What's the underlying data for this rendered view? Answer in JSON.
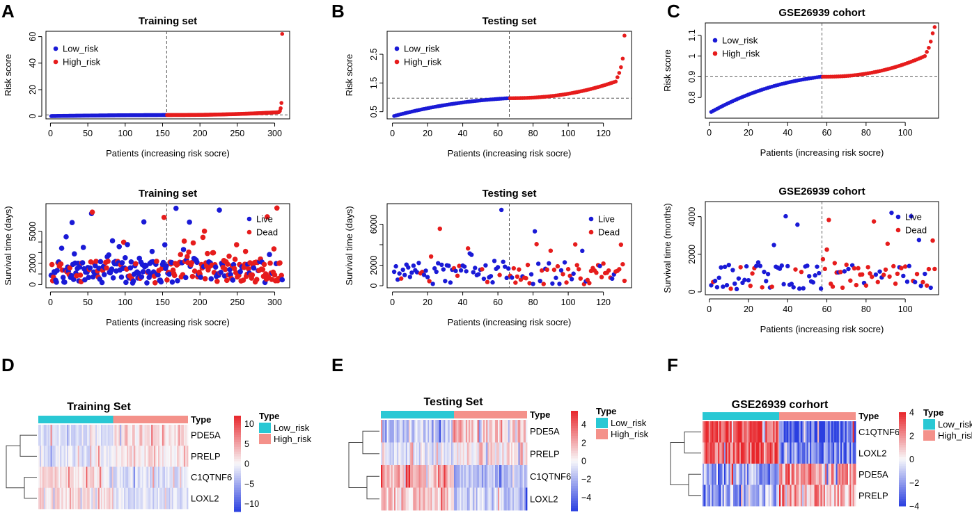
{
  "figure": {
    "panel_letters": [
      "A",
      "B",
      "C",
      "D",
      "E",
      "F"
    ]
  },
  "colors": {
    "low": "#1a1ad6",
    "high": "#e61c1c",
    "cyan": "#29c8d4",
    "salmon": "#f4918a",
    "hm_pos": "#e8262b",
    "hm_neg": "#2a3fe0"
  },
  "chart_data": [
    {
      "id": "A1",
      "type": "scatter",
      "title": "Training set",
      "xlabel": "Patients (increasing risk socre)",
      "ylabel": "Risk score",
      "xlim": [
        -6,
        320
      ],
      "ylim": [
        -2,
        64
      ],
      "xticks": [
        0,
        50,
        100,
        150,
        200,
        250,
        300
      ],
      "yticks": [
        0,
        20,
        40,
        60
      ],
      "n": 310,
      "cutoff_index": 155,
      "cutoff_value": 1.0,
      "series": [
        {
          "name": "Low_risk",
          "kind": "low",
          "shape": "risk-low",
          "start": 1,
          "end": 155,
          "from": 0.1,
          "to": 0.9
        },
        {
          "name": "High_risk",
          "kind": "high",
          "shape": "risk-high",
          "start": 156,
          "end": 310,
          "from": 0.9,
          "to": 3.0,
          "tail": [
            3.2,
            4.0,
            6.0,
            10.0,
            62.0
          ]
        }
      ],
      "legend": "top-left",
      "legend_labels": [
        "Low_risk",
        "High_risk"
      ]
    },
    {
      "id": "A2",
      "type": "scatter",
      "title": "Training set",
      "xlabel": "Patients (increasing risk socre)",
      "ylabel": "Survival time (days)",
      "xlim": [
        -6,
        320
      ],
      "ylim": [
        -300,
        7600
      ],
      "xticks": [
        0,
        50,
        100,
        150,
        200,
        250,
        300
      ],
      "yticks": [
        0,
        1000,
        2000,
        3000,
        4000,
        5000
      ],
      "ytick_labels_shown": [
        0,
        2000,
        5000
      ],
      "n": 310,
      "cutoff_index": 155,
      "max_value": 7300,
      "legend": "top-right",
      "legend_labels": [
        "Live",
        "Dead"
      ],
      "seed": 11
    },
    {
      "id": "B1",
      "type": "scatter",
      "title": "Testing set",
      "xlabel": "Patients (increasing risk socre)",
      "ylabel": "Risk score",
      "xlim": [
        -3,
        136
      ],
      "ylim": [
        0.25,
        3.3
      ],
      "xticks": [
        0,
        20,
        40,
        60,
        80,
        100,
        120
      ],
      "yticks": [
        0.5,
        1.5,
        2.5
      ],
      "n": 132,
      "cutoff_index": 66,
      "cutoff_value": 0.97,
      "series": [
        {
          "name": "Low_risk",
          "kind": "low",
          "shape": "risk-low",
          "start": 1,
          "end": 66,
          "from": 0.35,
          "to": 0.97
        },
        {
          "name": "High_risk",
          "kind": "high",
          "shape": "risk-high",
          "start": 67,
          "end": 132,
          "from": 0.97,
          "to": 1.55,
          "tail": [
            1.7,
            1.85,
            2.05,
            2.35,
            3.15
          ]
        }
      ],
      "legend": "top-left",
      "legend_labels": [
        "Low_risk",
        "High_risk"
      ]
    },
    {
      "id": "B2",
      "type": "scatter",
      "title": "Testing set",
      "xlabel": "Patients (increasing risk socre)",
      "ylabel": "Survival time (days)",
      "xlim": [
        -3,
        136
      ],
      "ylim": [
        -200,
        8000
      ],
      "xticks": [
        0,
        20,
        40,
        60,
        80,
        100,
        120
      ],
      "yticks": [
        0,
        2000,
        4000,
        6000
      ],
      "ytick_labels_shown": [
        0,
        2000,
        6000
      ],
      "n": 132,
      "cutoff_index": 66,
      "max_value": 7600,
      "legend": "top-right",
      "legend_labels": [
        "Live",
        "Dead"
      ],
      "seed": 23
    },
    {
      "id": "C1",
      "type": "scatter",
      "title": "GSE26939 cohort",
      "xlabel": "Patients (increasing risk socre)",
      "ylabel": "Risk score",
      "xlim": [
        -2,
        117
      ],
      "ylim": [
        0.7,
        1.16
      ],
      "xticks": [
        0,
        20,
        40,
        60,
        80,
        100
      ],
      "yticks": [
        0.8,
        0.9,
        1.0,
        1.1
      ],
      "n": 115,
      "cutoff_index": 57,
      "cutoff_value": 0.9,
      "series": [
        {
          "name": "Low_risk",
          "kind": "low",
          "shape": "risk-low",
          "start": 1,
          "end": 57,
          "from": 0.73,
          "to": 0.9
        },
        {
          "name": "High_risk",
          "kind": "high",
          "shape": "risk-high",
          "start": 58,
          "end": 115,
          "from": 0.9,
          "to": 1.0,
          "tail": [
            1.02,
            1.04,
            1.07,
            1.11,
            1.14
          ]
        }
      ],
      "legend": "top-left",
      "legend_labels": [
        "Low_risk",
        "High_risk"
      ]
    },
    {
      "id": "C2",
      "type": "scatter",
      "title": "GSE26939 cohort",
      "xlabel": "Patients (increasing risk socre)",
      "ylabel": "Survival time (months)",
      "xlim": [
        -2,
        117
      ],
      "ylim": [
        -150,
        4800
      ],
      "xticks": [
        0,
        20,
        40,
        60,
        80,
        100
      ],
      "yticks": [
        0,
        2000,
        4000
      ],
      "n": 115,
      "cutoff_index": 57,
      "max_value": 4700,
      "legend": "top-right",
      "legend_labels": [
        "Live",
        "Dead"
      ],
      "seed": 37
    },
    {
      "id": "D",
      "type": "heatmap",
      "title": "Training Set",
      "genes": [
        "PDE5A",
        "PRELP",
        "C1QTNF6",
        "LOXL2"
      ],
      "type_label": "Type",
      "groups": [
        "Low_risk",
        "High_risk"
      ],
      "colorbar_range": [
        -12,
        12
      ],
      "colorbar_ticks": [
        10,
        5,
        0,
        -5,
        -10
      ],
      "dendrogram": "pairs-12-34",
      "n_cols": 110,
      "scale": 0.35,
      "gene_trend": [
        0.15,
        0.15,
        -0.2,
        -0.2
      ],
      "seed": 5
    },
    {
      "id": "E",
      "type": "heatmap",
      "title": "Testing Set",
      "genes": [
        "PDE5A",
        "PRELP",
        "C1QTNF6",
        "LOXL2"
      ],
      "type_label": "Type",
      "groups": [
        "Low_risk",
        "High_risk"
      ],
      "colorbar_range": [
        -5.5,
        5.5
      ],
      "colorbar_ticks": [
        4,
        2,
        0,
        -2,
        -4
      ],
      "dendrogram": "pairs-12-34",
      "n_cols": 100,
      "scale": 0.55,
      "gene_trend": [
        0.2,
        0.1,
        -0.3,
        -0.2
      ],
      "seed": 9
    },
    {
      "id": "F",
      "type": "heatmap",
      "title": "GSE26939 corhort",
      "genes": [
        "C1QTNF6",
        "LOXL2",
        "PDE5A",
        "PRELP"
      ],
      "type_label": "Type",
      "groups": [
        "Low_risk",
        "High_risk"
      ],
      "colorbar_range": [
        -4,
        4
      ],
      "colorbar_ticks": [
        4,
        2,
        0,
        -2,
        -4
      ],
      "dendrogram": "pairs-12-34",
      "n_cols": 100,
      "scale": 0.9,
      "gene_trend": [
        -0.45,
        -0.35,
        0.2,
        0.2
      ],
      "seed": 17
    }
  ]
}
